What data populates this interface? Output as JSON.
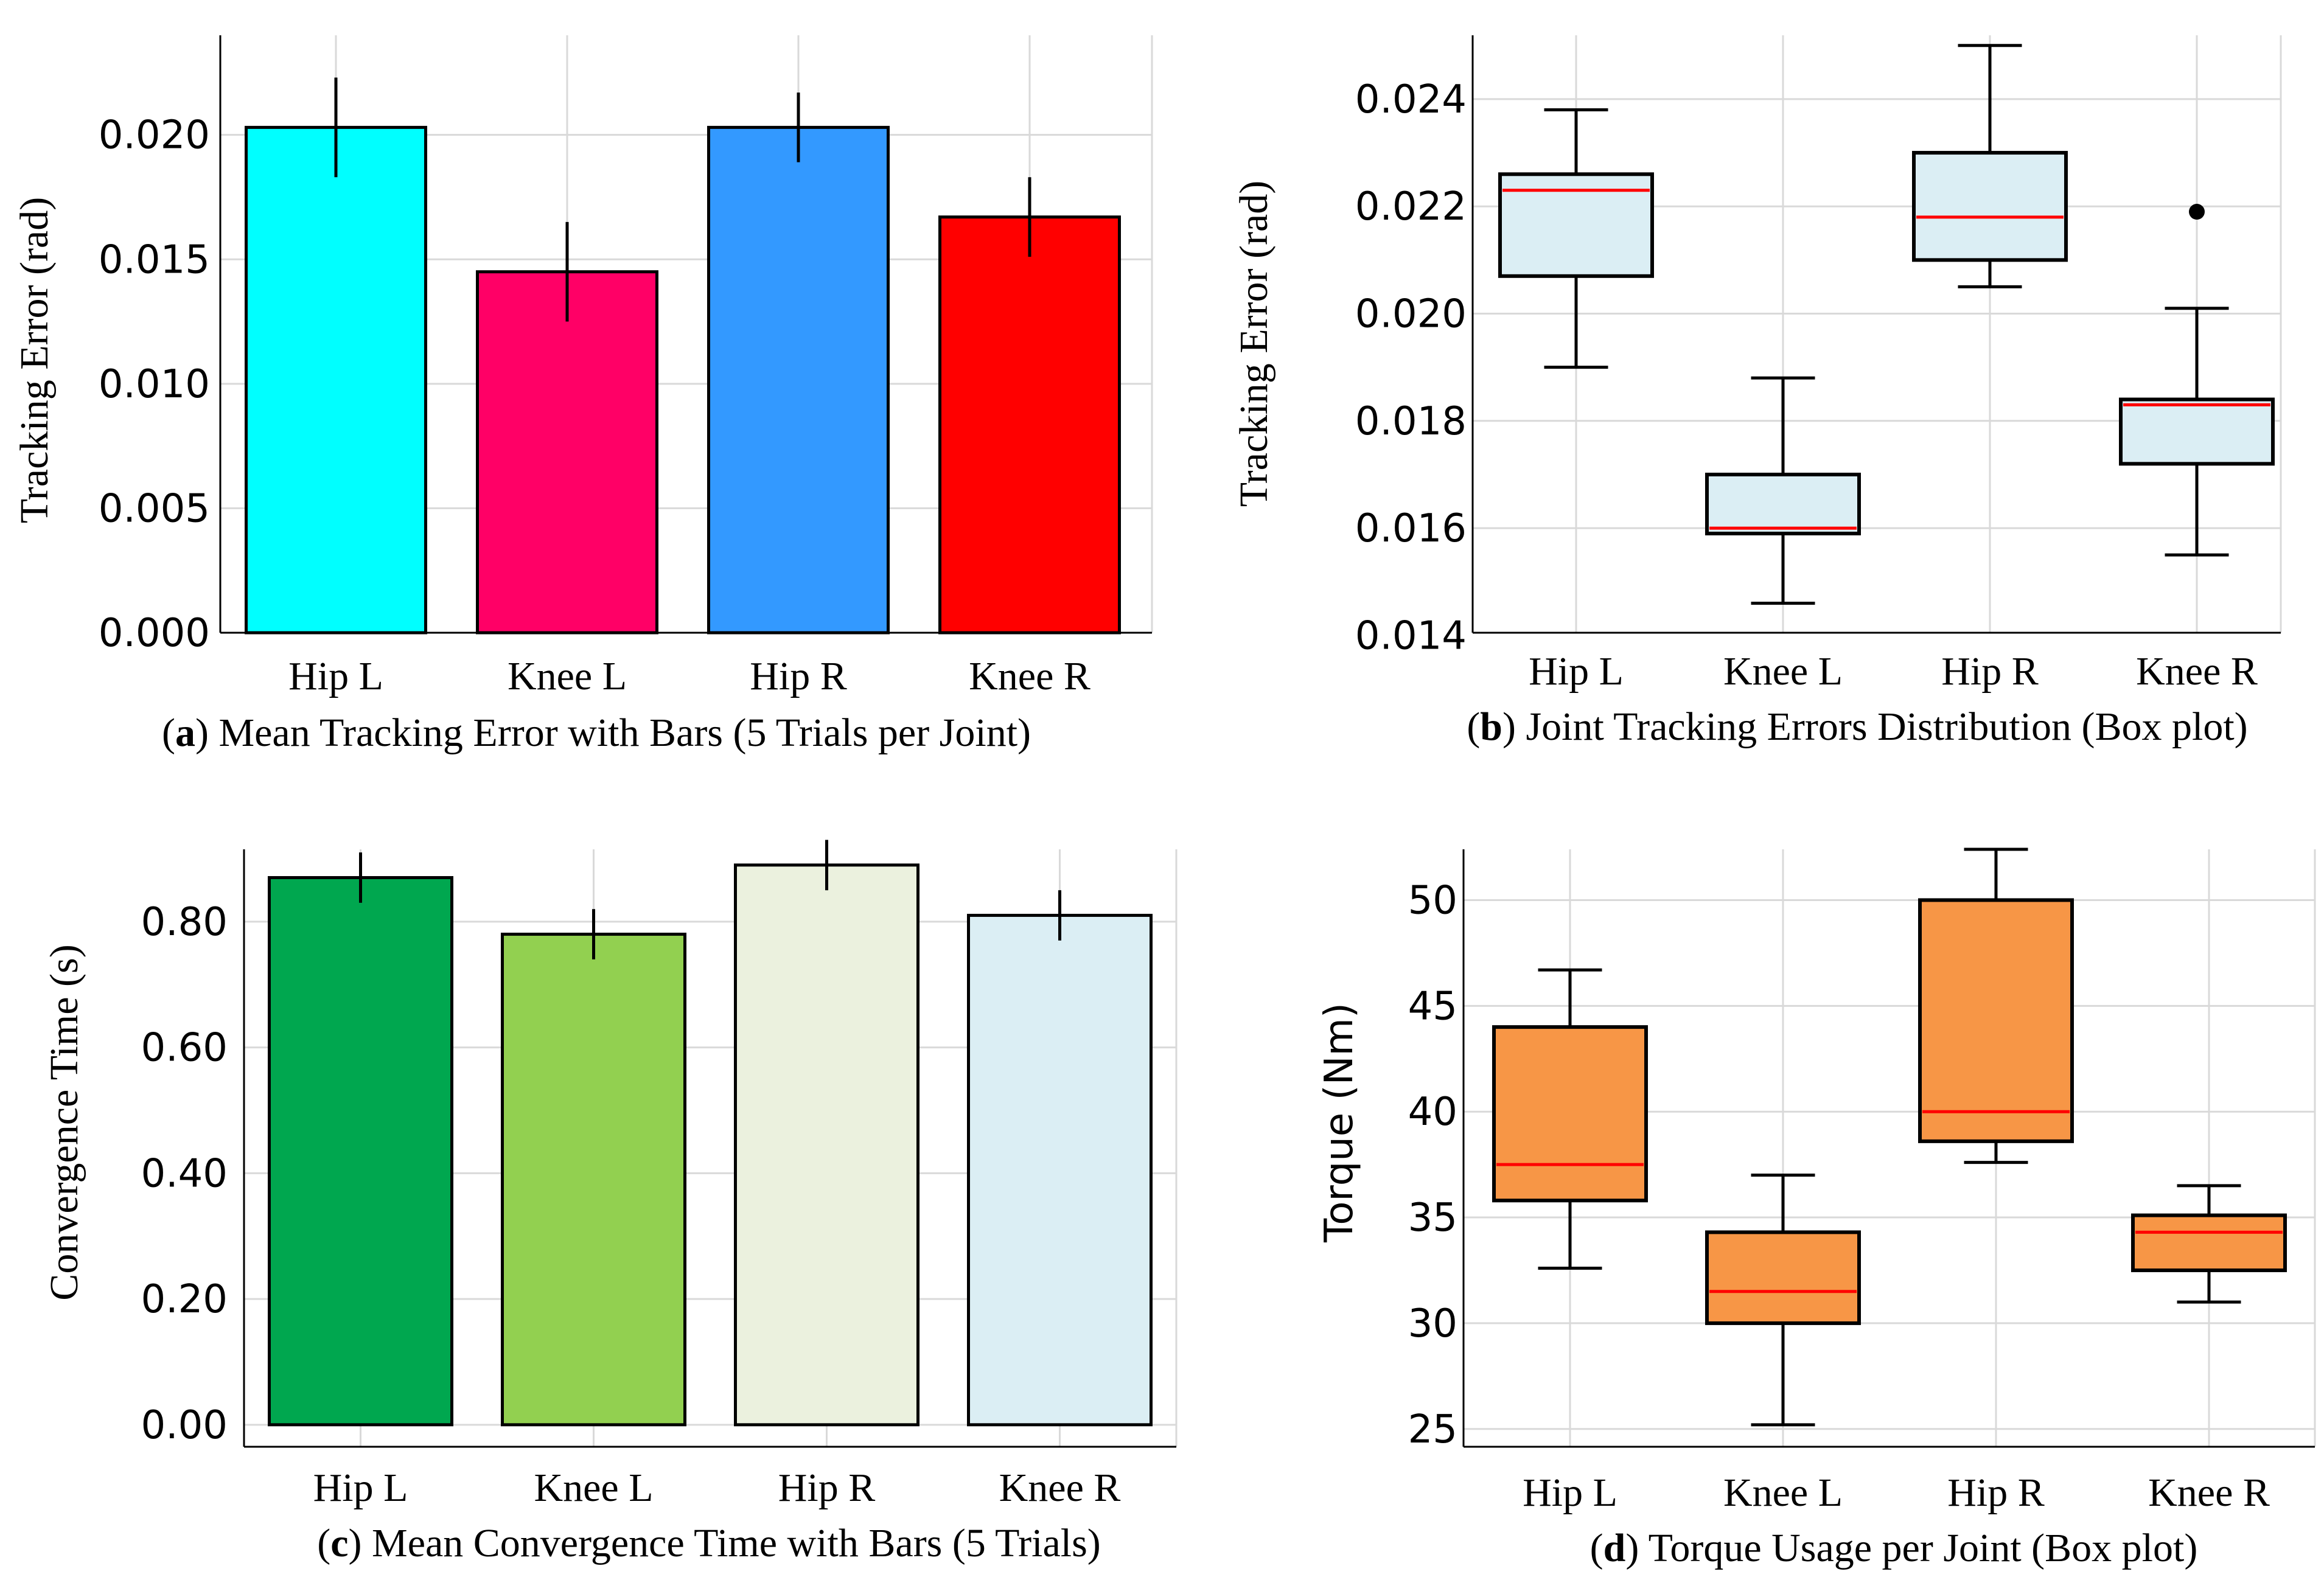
{
  "panels": [
    {
      "id": "a",
      "caption": {
        "letter": "a",
        "text": " Mean Tracking Error with Bars (5 Trials per Joint)"
      },
      "ylabel": "Tracking Error (rad)",
      "ylabel_font": "serif",
      "chart_data": {
        "type": "bar",
        "categories": [
          "Hip L",
          "Knee L",
          "Hip R",
          "Knee R"
        ],
        "values": [
          0.0203,
          0.0145,
          0.0203,
          0.0167
        ],
        "error": [
          0.002,
          0.002,
          0.0014,
          0.0016
        ],
        "colors": [
          "#00ffff",
          "#ff0066",
          "#3399ff",
          "#ff0000"
        ],
        "yticks": [
          "0.000",
          "0.005",
          "0.010",
          "0.015",
          "0.020"
        ],
        "ytick_values": [
          0,
          0.005,
          0.01,
          0.015,
          0.02
        ],
        "ylim": [
          0,
          0.024
        ],
        "grid": true
      }
    },
    {
      "id": "b",
      "caption": {
        "letter": "b",
        "text": " Joint Tracking Errors Distribution (Box plot)"
      },
      "ylabel": "Tracking Error (rad)",
      "ylabel_font": "serif",
      "chart_data": {
        "type": "box",
        "categories": [
          "Hip L",
          "Knee L",
          "Hip R",
          "Knee R"
        ],
        "boxes": [
          {
            "whislo": 0.019,
            "q1": 0.0207,
            "med": 0.0223,
            "q3": 0.0226,
            "whishi": 0.0238
          },
          {
            "whislo": 0.0146,
            "q1": 0.0159,
            "med": 0.016,
            "q3": 0.017,
            "whishi": 0.0188
          },
          {
            "whislo": 0.0205,
            "q1": 0.021,
            "med": 0.0218,
            "q3": 0.023,
            "whishi": 0.025
          },
          {
            "whislo": 0.0155,
            "q1": 0.0172,
            "med": 0.0183,
            "q3": 0.0184,
            "whishi": 0.0201,
            "fliers": [
              0.0219
            ]
          }
        ],
        "box_color": "#dbeef4",
        "median_color": "#ff0000",
        "yticks": [
          "0.014",
          "0.016",
          "0.018",
          "0.020",
          "0.022",
          "0.024"
        ],
        "ytick_values": [
          0.014,
          0.016,
          0.018,
          0.02,
          0.022,
          0.024
        ],
        "ylim": [
          0.01405,
          0.02519
        ],
        "grid": true
      }
    },
    {
      "id": "c",
      "caption": {
        "letter": "c",
        "text": " Mean Convergence Time with Bars (5 Trials)"
      },
      "ylabel": "Convergence Time (s)",
      "ylabel_font": "serif",
      "chart_data": {
        "type": "bar",
        "categories": [
          "Hip L",
          "Knee L",
          "Hip R",
          "Knee R"
        ],
        "values": [
          0.87,
          0.78,
          0.89,
          0.81
        ],
        "error": [
          0.04,
          0.04,
          0.04,
          0.04
        ],
        "colors": [
          "#00a74f",
          "#92d050",
          "#ebf1de",
          "#dbeef4"
        ],
        "yticks": [
          "0.00",
          "0.20",
          "0.40",
          "0.60",
          "0.80"
        ],
        "ytick_values": [
          0,
          0.2,
          0.4,
          0.6,
          0.8
        ],
        "ylim": [
          -0.035,
          0.915
        ],
        "grid": true
      }
    },
    {
      "id": "d",
      "caption": {
        "letter": "d",
        "text": " Torque Usage per Joint (Box plot)"
      },
      "ylabel": "Torque (Nm)",
      "ylabel_font": "sans",
      "chart_data": {
        "type": "box",
        "categories": [
          "Hip L",
          "Knee L",
          "Hip R",
          "Knee R"
        ],
        "boxes": [
          {
            "whislo": 32.6,
            "q1": 35.8,
            "med": 37.5,
            "q3": 44.0,
            "whishi": 46.7
          },
          {
            "whislo": 25.2,
            "q1": 30.0,
            "med": 31.5,
            "q3": 34.3,
            "whishi": 37.0
          },
          {
            "whislo": 37.6,
            "q1": 38.6,
            "med": 40.0,
            "q3": 50.0,
            "whishi": 52.4
          },
          {
            "whislo": 31.0,
            "q1": 32.5,
            "med": 34.3,
            "q3": 35.1,
            "whishi": 36.5
          }
        ],
        "box_color": "#f79646",
        "median_color": "#ff0000",
        "yticks": [
          "25",
          "30",
          "35",
          "40",
          "45",
          "50"
        ],
        "ytick_values": [
          25,
          30,
          35,
          40,
          45,
          50
        ],
        "ylim": [
          24.16,
          52.4
        ],
        "grid": true
      }
    }
  ]
}
